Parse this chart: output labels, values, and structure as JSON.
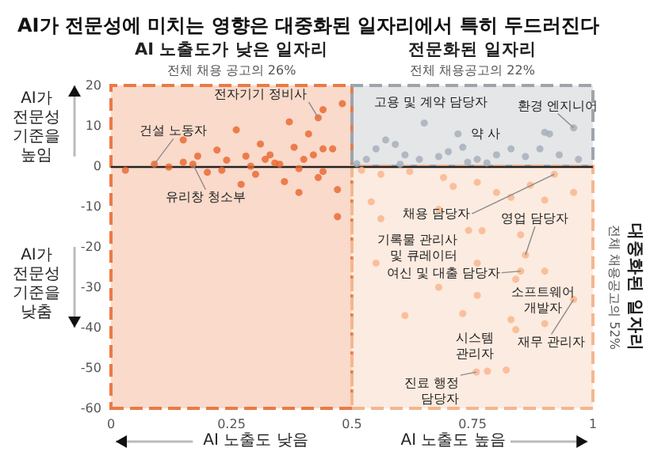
{
  "chart_data": {
    "type": "scatter",
    "title": "AI가 전문성에 미치는 영향은 대중화된 일자리에서 특히 두드러진다",
    "series": [
      {
        "color": "#e8642c",
        "x": [
          0.03,
          0.09,
          0.12,
          0.15,
          0.17,
          0.15,
          0.2,
          0.22,
          0.24,
          0.26,
          0.28,
          0.29,
          0.3,
          0.31,
          0.32,
          0.33,
          0.35,
          0.36,
          0.37,
          0.38,
          0.39,
          0.4,
          0.41,
          0.42,
          0.43,
          0.43,
          0.44,
          0.27,
          0.23,
          0.18,
          0.44,
          0.46,
          0.47,
          0.47,
          0.44,
          0.48,
          0.34,
          0.39
        ],
        "values": [
          -1,
          0.5,
          -0.2,
          1,
          0.5,
          6.5,
          -1.5,
          4,
          1.5,
          9,
          2.5,
          0,
          -2,
          5.5,
          1.7,
          2.8,
          0.5,
          -3.8,
          11,
          4.7,
          -6.5,
          1.7,
          8,
          2.8,
          12,
          -2.8,
          14,
          -4.5,
          -1,
          2.5,
          4.3,
          4.3,
          -5.8,
          -12.5,
          -1.3,
          15.5,
          0.8,
          -0.6
        ]
      },
      {
        "color": "#a3adb8",
        "x": [
          0.65,
          0.72,
          0.73,
          0.53,
          0.55,
          0.57,
          0.59,
          0.61,
          0.64,
          0.68,
          0.7,
          0.76,
          0.8,
          0.83,
          0.86,
          0.89,
          0.9,
          0.91,
          0.96,
          0.93,
          0.97,
          0.51,
          0.74,
          0.78,
          0.6
        ],
        "values": [
          10.7,
          8,
          4.7,
          1.7,
          4.3,
          6.5,
          5.4,
          2.8,
          1.7,
          2.4,
          3.6,
          1.7,
          2.8,
          4.3,
          2.4,
          4.3,
          8.4,
          8,
          9.5,
          2.8,
          1.7,
          0.6,
          1,
          0.8,
          0.5
        ]
      },
      {
        "color": "#f7b48a",
        "x": [
          0.52,
          0.56,
          0.62,
          0.69,
          0.71,
          0.92,
          0.76,
          0.8,
          0.83,
          0.87,
          0.9,
          0.96,
          0.54,
          0.56,
          0.68,
          0.77,
          0.742,
          0.85,
          0.86,
          0.55,
          0.76,
          0.68,
          0.76,
          0.9,
          0.84,
          0.85,
          0.96,
          0.61,
          0.73,
          0.83,
          0.84,
          0.9,
          0.781,
          0.758,
          0.82
        ],
        "values": [
          -1,
          -2,
          -1.3,
          -2.8,
          -5,
          -2,
          -4,
          -6.5,
          -7.7,
          -4.7,
          -8.4,
          -6.5,
          -8.8,
          -13,
          -10.7,
          -16,
          -15.9,
          -17,
          -22,
          -24,
          -24,
          -30,
          -32,
          -26,
          -28,
          -26,
          -33,
          -37,
          -36.5,
          -38,
          -40.5,
          -39,
          -50.8,
          -51,
          -50.5
        ]
      }
    ],
    "xlim": [
      0,
      1
    ],
    "xticks": [
      0,
      0.25,
      0.5,
      0.75,
      1
    ],
    "ylim": [
      -60,
      20
    ],
    "yticks": [
      -60,
      -50,
      -40,
      -30,
      -20,
      -10,
      0,
      10,
      20
    ],
    "bands": [
      {
        "axis": "x",
        "from": 0,
        "to": 0.5,
        "label": "AI 노출도가 낮은 일자리\n전체 채용 공고의 26%",
        "color": "#ea7a45"
      },
      {
        "axis": "y",
        "from": 0,
        "to": 20,
        "label": "전문화된 일자리\n전체 채용공고의 22%",
        "color": "#9ea4ab"
      },
      {
        "axis": "y",
        "from": -60,
        "to": 0,
        "label": "대중화된 일자리\n전체 채용공고의 52%",
        "color": "#f4b68f"
      }
    ],
    "ref_lines": [
      {
        "axis": "y",
        "value": 0,
        "color": "#222222"
      }
    ],
    "annotations": [
      {
        "text": "전자기기 정비사",
        "x": 0.43,
        "y": 12
      },
      {
        "text": "건설 노동자",
        "x": 0.09,
        "y": 0.5
      },
      {
        "text": "유리창 청소부",
        "x": 0.17,
        "y": 0.5
      },
      {
        "text": "고용 및 계약 담당자",
        "x": 0.65,
        "y": 10.7
      },
      {
        "text": "약 사",
        "x": 0.72,
        "y": 8
      },
      {
        "text": "환경 엔지니어",
        "x": 0.96,
        "y": 9.5
      },
      {
        "text": "채용 담당자",
        "x": 0.92,
        "y": -2
      },
      {
        "text": "기록물 관리사 및 큐레이터",
        "x": 0.742,
        "y": -15.9
      },
      {
        "text": "영업 담당자",
        "x": 0.86,
        "y": -22
      },
      {
        "text": "여신 및 대출 담당자",
        "x": 0.85,
        "y": -26
      },
      {
        "text": "소프트웨어 개발자",
        "x": 0.9,
        "y": -26
      },
      {
        "text": "재무 관리자",
        "x": 0.96,
        "y": -33
      },
      {
        "text": "시스템 관리자",
        "x": 0.781,
        "y": -50.8
      },
      {
        "text": "진료 행정 담당자",
        "x": 0.758,
        "y": -51
      },
      "AI가 전문성 기준을 높임",
      "AI가 전문성 기준을 낮춤",
      "AI 노출도 낮음",
      "AI 노출도 높음"
    ],
    "marker": "circle",
    "grid": false
  }
}
